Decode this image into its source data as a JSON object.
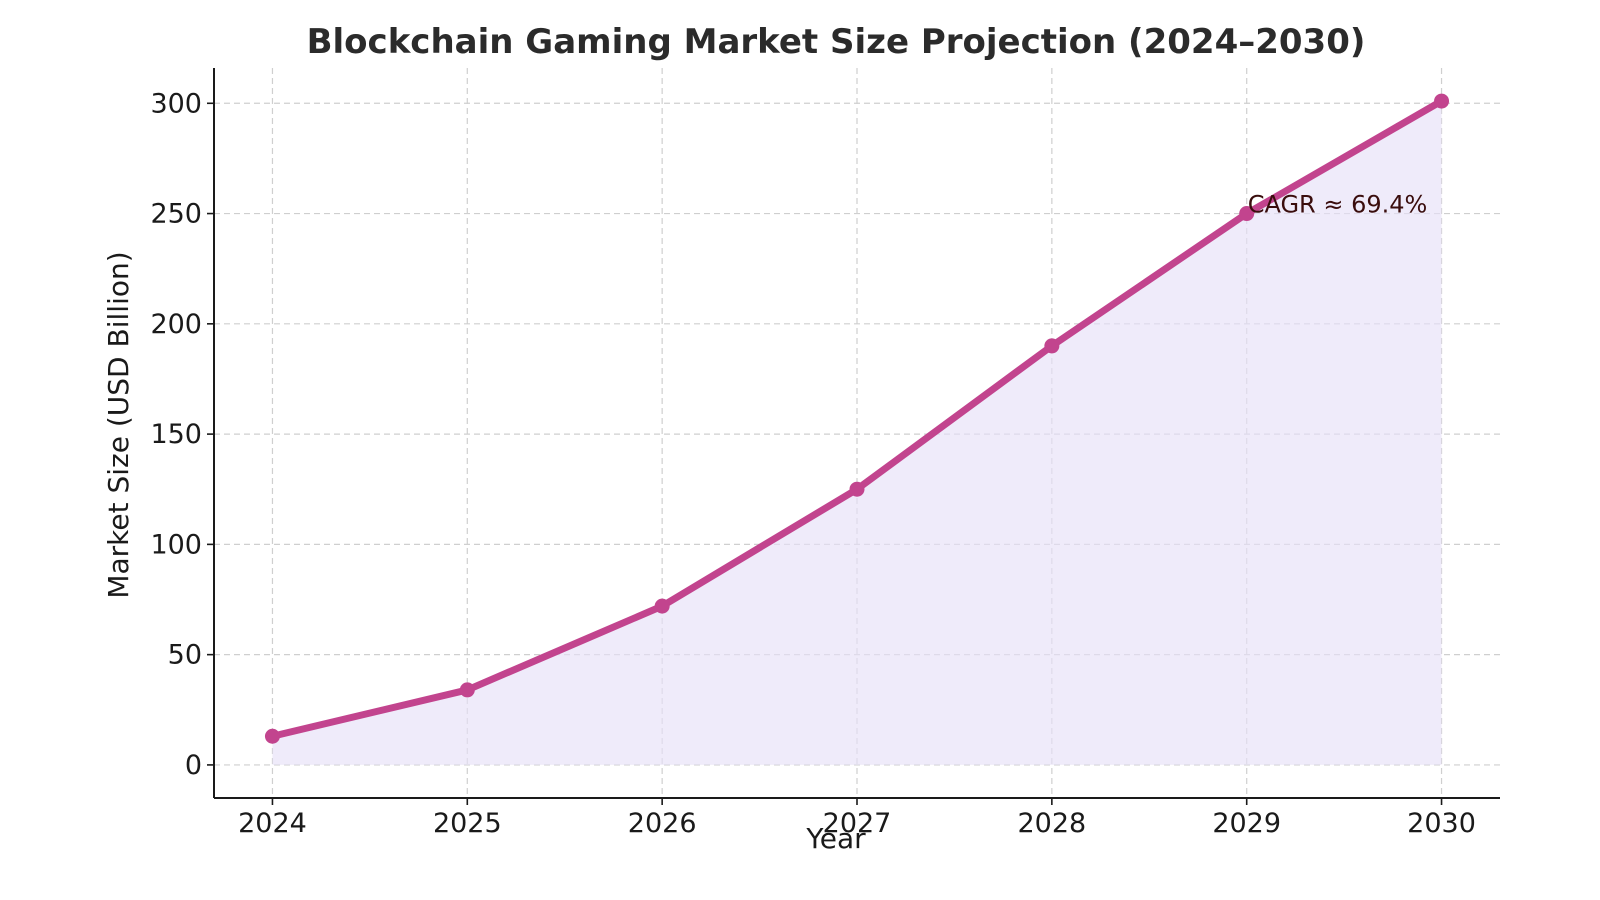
{
  "chart_data": {
    "type": "line",
    "title": "Blockchain Gaming Market Size Projection (2024–2030)",
    "xlabel": "Year",
    "ylabel": "Market Size (USD Billion)",
    "x": [
      2024,
      2025,
      2026,
      2027,
      2028,
      2029,
      2030
    ],
    "x_tick_labels": [
      "2024",
      "2025",
      "2026",
      "2027",
      "2028",
      "2029",
      "2030"
    ],
    "series": [
      {
        "values": [
          13,
          34,
          72,
          125,
          190,
          250,
          301
        ]
      }
    ],
    "xlim": [
      2023.7,
      2030.3
    ],
    "ylim": [
      -15,
      316
    ],
    "yticks": [
      0,
      50,
      100,
      150,
      200,
      250,
      300
    ],
    "y_tick_labels": [
      "0",
      "50",
      "100",
      "150",
      "200",
      "250",
      "300"
    ],
    "grid": true,
    "area_fill": true,
    "annotation": {
      "text": "CAGR ≈ 69.4%",
      "x": 2029,
      "y": 250
    },
    "colors": {
      "line": "#c2448e",
      "fill": "#e6e0f7",
      "annotation": "#3a0d0d",
      "title": "#2b2b2b"
    }
  }
}
